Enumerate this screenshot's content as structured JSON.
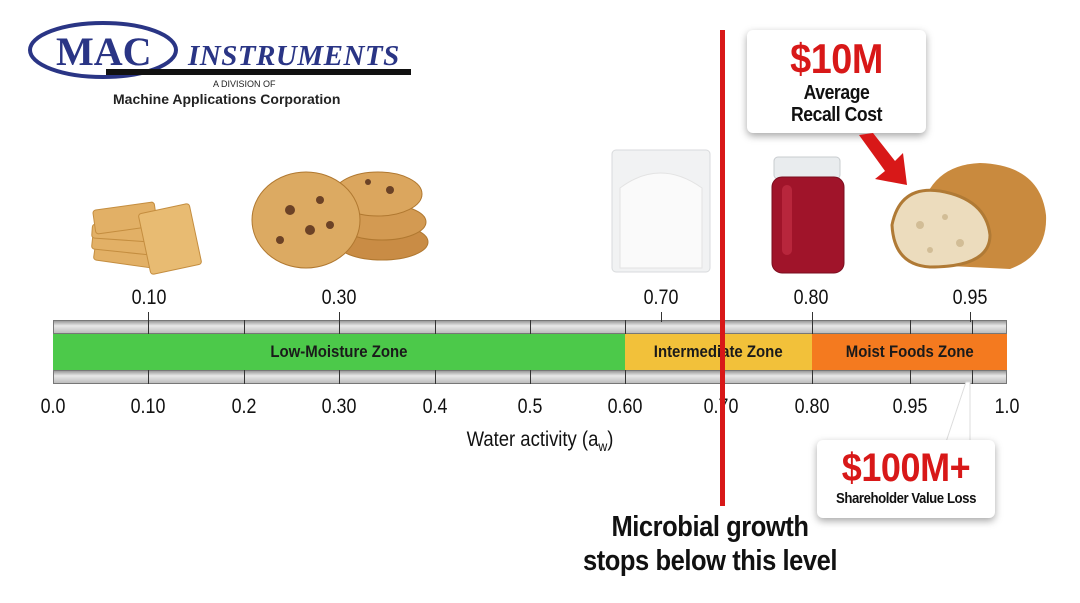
{
  "logo": {
    "brand": "MAC",
    "name": "INSTRUMENTS",
    "division": "A DIVISION OF",
    "parent": "Machine Applications Corporation"
  },
  "foods": [
    {
      "icon": "crackers-image",
      "value": "0.10"
    },
    {
      "icon": "cookies-image",
      "value": "0.30"
    },
    {
      "icon": "flour-bag-image",
      "value": "0.70"
    },
    {
      "icon": "jam-jar-image",
      "value": "0.80"
    },
    {
      "icon": "bread-loaf-image",
      "value": "0.95"
    }
  ],
  "zones": [
    {
      "label": "Low-Moisture Zone",
      "from": 0.0,
      "to": 0.6,
      "color": "#4cc94a"
    },
    {
      "label": "Intermediate Zone",
      "from": 0.6,
      "to": 0.8,
      "color": "#f2c13a"
    },
    {
      "label": "Moist Foods Zone",
      "from": 0.8,
      "to": 1.0,
      "color": "#f47a1f"
    }
  ],
  "axis": {
    "ticks": [
      "0.0",
      "0.10",
      "0.2",
      "0.30",
      "0.4",
      "0.5",
      "0.60",
      "0.70",
      "0.80",
      "0.95",
      "1.0"
    ],
    "title_main": "Water activity (a",
    "title_sub": "w",
    "title_end": ")"
  },
  "threshold": {
    "value": 0.7,
    "color": "#d81818",
    "caption_line1": "Microbial growth",
    "caption_line2": "stops below this level"
  },
  "callouts": {
    "recall": {
      "amount": "$10M",
      "line1": "Average",
      "line2": "Recall Cost"
    },
    "shareholder": {
      "amount": "$100M+",
      "label": "Shareholder Value Loss"
    }
  },
  "colors": {
    "accent_red": "#d81818",
    "logo_blue": "#2a3585"
  }
}
